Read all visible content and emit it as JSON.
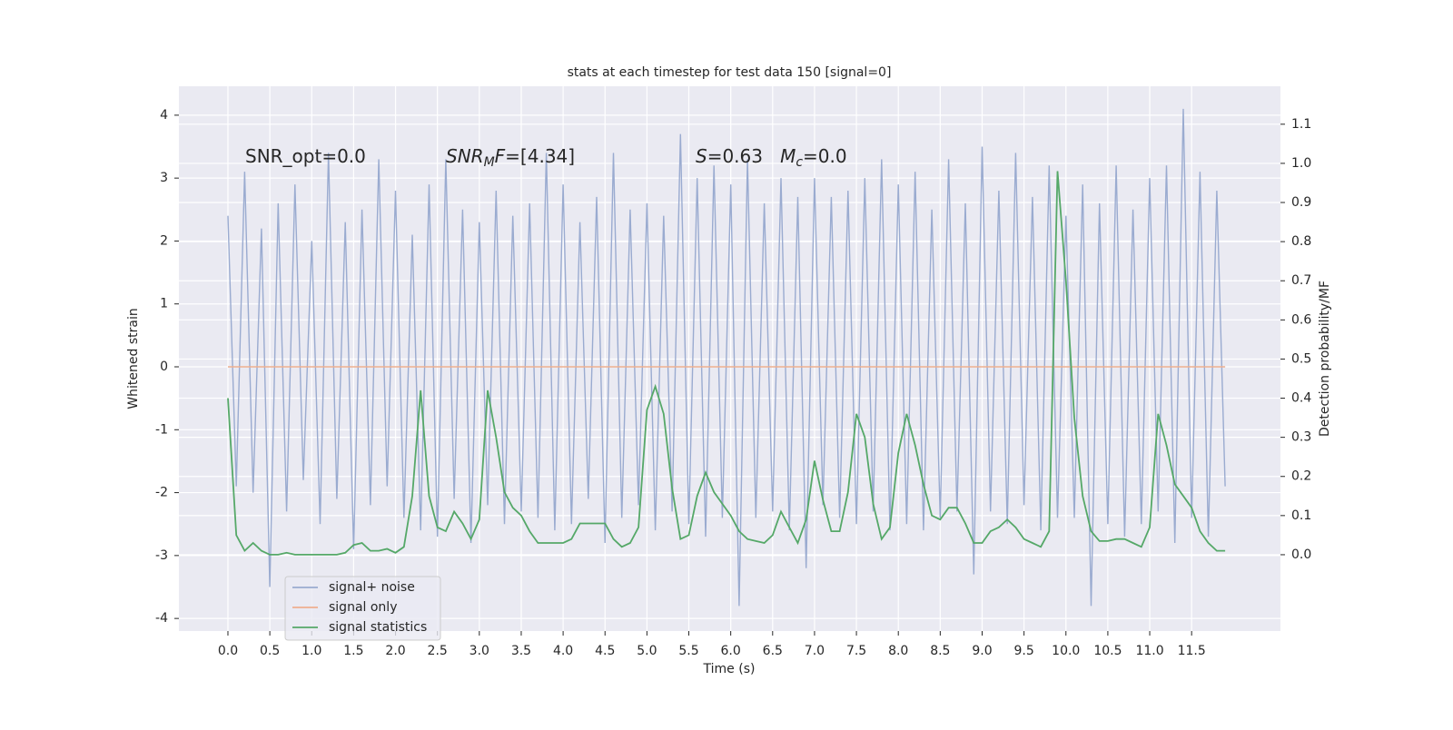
{
  "chart_data": {
    "type": "line",
    "title": "stats at each timestep for test data 150 [signal=0]",
    "xlabel": "Time (s)",
    "ylabel": "Whitened strain",
    "y2label": "Detection probability/MF",
    "annotations": [
      {
        "parts": [
          {
            "text": "SNR_opt=0.0",
            "style": "normal"
          }
        ]
      },
      {
        "parts": [
          {
            "text": "SNR",
            "style": "italic"
          },
          {
            "text": "M",
            "style": "sub"
          },
          {
            "text": "F",
            "style": "italic"
          },
          {
            "text": "=[4.34]",
            "style": "normal"
          }
        ]
      },
      {
        "parts": [
          {
            "text": "S",
            "style": "italic"
          },
          {
            "text": "=0.63   ",
            "style": "normal"
          },
          {
            "text": "M",
            "style": "italic"
          },
          {
            "text": "c",
            "style": "sub"
          },
          {
            "text": "=0.0",
            "style": "normal"
          }
        ]
      }
    ],
    "x": [
      0.0,
      0.1,
      0.2,
      0.3,
      0.4,
      0.5,
      0.6,
      0.7,
      0.8,
      0.9,
      1.0,
      1.1,
      1.2,
      1.3,
      1.4,
      1.5,
      1.6,
      1.7,
      1.8,
      1.9,
      2.0,
      2.1,
      2.2,
      2.3,
      2.4,
      2.5,
      2.6,
      2.7,
      2.8,
      2.9,
      3.0,
      3.1,
      3.2,
      3.3,
      3.4,
      3.5,
      3.6,
      3.7,
      3.8,
      3.9,
      4.0,
      4.1,
      4.2,
      4.3,
      4.4,
      4.5,
      4.6,
      4.7,
      4.8,
      4.9,
      5.0,
      5.1,
      5.2,
      5.3,
      5.4,
      5.5,
      5.6,
      5.7,
      5.8,
      5.9,
      6.0,
      6.1,
      6.2,
      6.3,
      6.4,
      6.5,
      6.6,
      6.7,
      6.8,
      6.9,
      7.0,
      7.1,
      7.2,
      7.3,
      7.4,
      7.5,
      7.6,
      7.7,
      7.8,
      7.9,
      8.0,
      8.1,
      8.2,
      8.3,
      8.4,
      8.5,
      8.6,
      8.7,
      8.8,
      8.9,
      9.0,
      9.1,
      9.2,
      9.3,
      9.4,
      9.5,
      9.6,
      9.7,
      9.8,
      9.9,
      10.0,
      10.1,
      10.2,
      10.3,
      10.4,
      10.5,
      10.6,
      10.7,
      10.8,
      10.9,
      11.0,
      11.1,
      11.2,
      11.3,
      11.4,
      11.5,
      11.6,
      11.7,
      11.8,
      11.9
    ],
    "series": [
      {
        "name": "signal+ noise",
        "color": "#9aabd0",
        "axis": "y",
        "values": [
          2.4,
          -1.9,
          3.1,
          -2.0,
          2.2,
          -3.5,
          2.6,
          -2.3,
          2.9,
          -1.8,
          2.0,
          -2.5,
          3.4,
          -2.1,
          2.3,
          -2.9,
          2.5,
          -2.2,
          3.3,
          -1.9,
          2.8,
          -2.4,
          2.1,
          -2.6,
          2.9,
          -2.7,
          3.3,
          -2.1,
          2.5,
          -2.8,
          2.3,
          -2.2,
          2.8,
          -2.5,
          2.4,
          -2.3,
          2.6,
          -2.4,
          3.4,
          -2.6,
          2.9,
          -2.5,
          2.3,
          -2.1,
          2.7,
          -2.8,
          3.4,
          -2.4,
          2.5,
          -2.2,
          2.6,
          -2.6,
          2.4,
          -2.3,
          3.7,
          -2.5,
          3.0,
          -2.7,
          3.2,
          -2.4,
          2.9,
          -3.8,
          3.3,
          -2.4,
          2.6,
          -2.3,
          3.0,
          -2.6,
          2.7,
          -3.2,
          3.0,
          -2.2,
          2.7,
          -2.4,
          2.8,
          -2.5,
          3.0,
          -2.3,
          3.3,
          -2.6,
          2.9,
          -2.5,
          3.1,
          -2.6,
          2.5,
          -2.4,
          3.3,
          -2.3,
          2.6,
          -3.3,
          3.5,
          -2.3,
          2.8,
          -2.5,
          3.4,
          -2.2,
          2.7,
          -2.6,
          3.2,
          -2.4,
          2.4,
          -2.4,
          2.9,
          -3.8,
          2.6,
          -2.5,
          3.2,
          -2.7,
          2.5,
          -2.5,
          3.0,
          -2.3,
          3.2,
          -2.8,
          4.1,
          -2.4,
          3.1,
          -2.7,
          2.8,
          -1.9
        ]
      },
      {
        "name": "signal only",
        "color": "#eeaf8f",
        "axis": "y",
        "values": [
          0,
          0,
          0,
          0,
          0,
          0,
          0,
          0,
          0,
          0,
          0,
          0,
          0,
          0,
          0,
          0,
          0,
          0,
          0,
          0,
          0,
          0,
          0,
          0,
          0,
          0,
          0,
          0,
          0,
          0,
          0,
          0,
          0,
          0,
          0,
          0,
          0,
          0,
          0,
          0,
          0,
          0,
          0,
          0,
          0,
          0,
          0,
          0,
          0,
          0,
          0,
          0,
          0,
          0,
          0,
          0,
          0,
          0,
          0,
          0,
          0,
          0,
          0,
          0,
          0,
          0,
          0,
          0,
          0,
          0,
          0,
          0,
          0,
          0,
          0,
          0,
          0,
          0,
          0,
          0,
          0,
          0,
          0,
          0,
          0,
          0,
          0,
          0,
          0,
          0,
          0,
          0,
          0,
          0,
          0,
          0,
          0,
          0,
          0,
          0,
          0,
          0,
          0,
          0,
          0,
          0,
          0,
          0,
          0,
          0,
          0,
          0,
          0,
          0,
          0,
          0,
          0,
          0,
          0,
          0
        ]
      },
      {
        "name": "signal statistics",
        "color": "#55a868",
        "axis": "y2",
        "values": [
          0.4,
          0.05,
          0.01,
          0.03,
          0.01,
          0.0,
          0.0,
          0.005,
          0.0,
          0.0,
          0.0,
          0.0,
          0.0,
          0.0,
          0.005,
          0.025,
          0.03,
          0.01,
          0.01,
          0.015,
          0.005,
          0.02,
          0.15,
          0.42,
          0.15,
          0.07,
          0.06,
          0.11,
          0.08,
          0.04,
          0.09,
          0.42,
          0.3,
          0.16,
          0.12,
          0.1,
          0.06,
          0.03,
          0.03,
          0.03,
          0.03,
          0.04,
          0.08,
          0.08,
          0.08,
          0.08,
          0.04,
          0.02,
          0.03,
          0.07,
          0.37,
          0.43,
          0.36,
          0.17,
          0.04,
          0.05,
          0.15,
          0.21,
          0.16,
          0.13,
          0.1,
          0.06,
          0.04,
          0.035,
          0.03,
          0.05,
          0.11,
          0.07,
          0.03,
          0.09,
          0.24,
          0.14,
          0.06,
          0.06,
          0.16,
          0.36,
          0.3,
          0.13,
          0.04,
          0.07,
          0.26,
          0.36,
          0.28,
          0.18,
          0.1,
          0.09,
          0.12,
          0.12,
          0.08,
          0.03,
          0.03,
          0.06,
          0.07,
          0.09,
          0.07,
          0.04,
          0.03,
          0.02,
          0.06,
          0.98,
          0.7,
          0.35,
          0.15,
          0.06,
          0.035,
          0.035,
          0.04,
          0.04,
          0.03,
          0.02,
          0.07,
          0.36,
          0.28,
          0.18,
          0.15,
          0.12,
          0.06,
          0.03,
          0.01,
          0.01
        ]
      }
    ],
    "xlim": [
      -0.585,
      12.56
    ],
    "xticks": [
      {
        "value": 0,
        "label": "0.0"
      },
      0.5,
      {
        "value": 1,
        "label": "1.0"
      },
      1.5,
      {
        "value": 2,
        "label": "2.0"
      },
      2.5,
      {
        "value": 3,
        "label": "3.0"
      },
      3.5,
      {
        "value": 4,
        "label": "4.0"
      },
      4.5,
      {
        "value": 5,
        "label": "5.0"
      },
      5.5,
      {
        "value": 6,
        "label": "6.0"
      },
      6.5,
      {
        "value": 7,
        "label": "7.0"
      },
      7.5,
      {
        "value": 8,
        "label": "8.0"
      },
      8.5,
      {
        "value": 9,
        "label": "9.0"
      },
      9.5,
      {
        "value": 10,
        "label": "10.0"
      },
      10.5,
      {
        "value": 11,
        "label": "11.0"
      },
      11.5
    ],
    "ylim": [
      -4.2,
      4.46
    ],
    "yticks": [
      -4,
      -3,
      -2,
      -1,
      0,
      1,
      2,
      3,
      4
    ],
    "y2lim": [
      -0.195,
      1.197
    ],
    "y2ticks": [
      {
        "value": 0,
        "label": "0.0"
      },
      0.1,
      0.2,
      0.3,
      0.4,
      0.5,
      0.6,
      0.7,
      0.8,
      0.9,
      {
        "value": 1,
        "label": "1.0"
      },
      1.1
    ],
    "grid": true,
    "legend": "lower left"
  }
}
